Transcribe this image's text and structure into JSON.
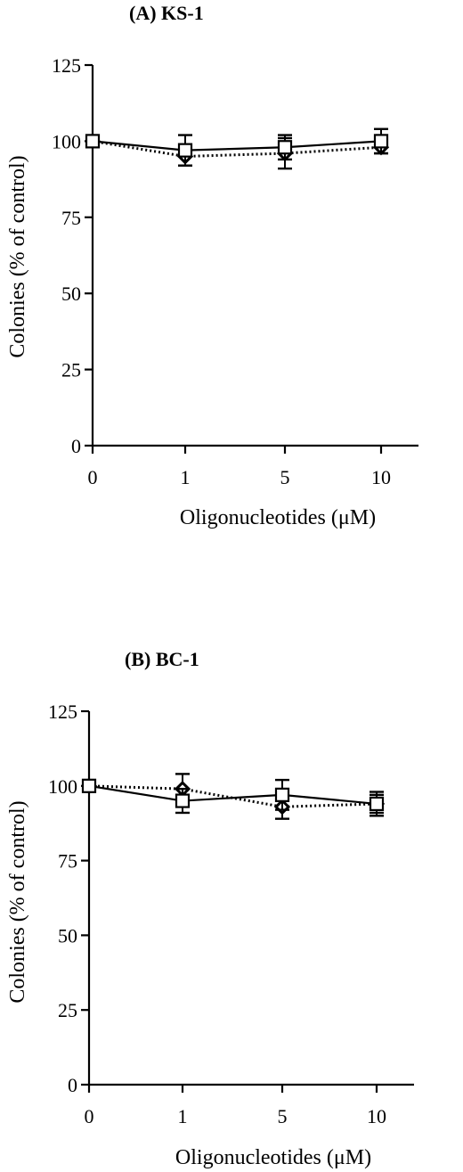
{
  "chart_data": [
    {
      "type": "line",
      "title": "(A) KS-1",
      "xlabel": "Oligonucleotides (μM)",
      "ylabel": "Colonies (% of control)",
      "categories": [
        "0",
        "1",
        "5",
        "10"
      ],
      "ylim": [
        0,
        125
      ],
      "yticks": [
        0,
        25,
        50,
        75,
        100,
        125
      ],
      "grid": false,
      "series": [
        {
          "marker": "square",
          "line_style": "solid",
          "values": [
            100,
            97,
            98,
            100
          ],
          "error": [
            0,
            5,
            4,
            4
          ]
        },
        {
          "marker": "diamond",
          "line_style": "dotted",
          "values": [
            100,
            95,
            96,
            98
          ],
          "error": [
            0,
            3,
            5,
            2
          ]
        }
      ]
    },
    {
      "type": "line",
      "title": "(B) BC-1",
      "xlabel": "Oligonucleotides (μM)",
      "ylabel": "Colonies (% of control)",
      "categories": [
        "0",
        "1",
        "5",
        "10"
      ],
      "ylim": [
        0,
        125
      ],
      "yticks": [
        0,
        25,
        50,
        75,
        100,
        125
      ],
      "grid": false,
      "series": [
        {
          "marker": "square",
          "line_style": "solid",
          "values": [
            100,
            95,
            97,
            94
          ],
          "error": [
            0,
            4,
            5,
            4
          ]
        },
        {
          "marker": "diamond",
          "line_style": "dotted",
          "values": [
            100,
            99,
            93,
            94
          ],
          "error": [
            0,
            5,
            4,
            3
          ]
        }
      ]
    }
  ]
}
